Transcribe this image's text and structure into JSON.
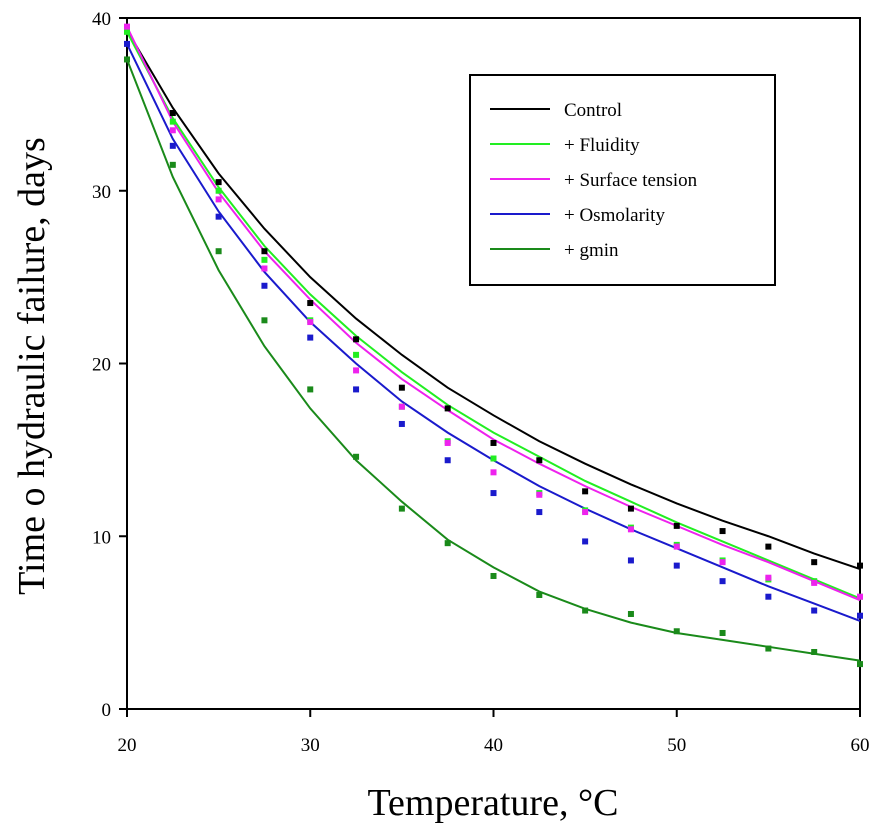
{
  "chart_data": {
    "type": "line",
    "title": "",
    "xlabel": "Temperature, °C",
    "ylabel": "Time o hydraulic failure, days",
    "xlim": [
      20,
      60
    ],
    "ylim": [
      0,
      40
    ],
    "xticks": [
      20,
      30,
      40,
      50,
      60
    ],
    "yticks": [
      0,
      10,
      20,
      30,
      40
    ],
    "grid": false,
    "legend_position": "top-right",
    "x": [
      20,
      22.5,
      25,
      27.5,
      30,
      32.5,
      35,
      37.5,
      40,
      42.5,
      45,
      47.5,
      50,
      52.5,
      55,
      57.5,
      60
    ],
    "series": [
      {
        "name": "Control",
        "color": "#000000",
        "points": [
          39.3,
          34.5,
          30.5,
          26.5,
          23.5,
          21.4,
          18.6,
          17.4,
          15.4,
          14.4,
          12.6,
          11.6,
          10.6,
          10.3,
          9.4,
          8.5,
          8.3
        ],
        "fit": [
          39.3,
          34.8,
          31.0,
          27.8,
          25.0,
          22.6,
          20.5,
          18.6,
          17.0,
          15.5,
          14.2,
          13.0,
          11.9,
          10.9,
          10.0,
          9.0,
          8.1
        ]
      },
      {
        "name": "+ Fluidity",
        "color": "#22ee22",
        "points": [
          39.2,
          34.0,
          30.0,
          26.0,
          22.5,
          20.5,
          17.5,
          15.5,
          14.5,
          12.5,
          11.5,
          10.5,
          9.5,
          8.6,
          7.5,
          7.4,
          6.5
        ],
        "fit": [
          39.2,
          34.2,
          30.2,
          26.8,
          24.0,
          21.6,
          19.5,
          17.6,
          16.0,
          14.6,
          13.2,
          12.0,
          10.8,
          9.7,
          8.6,
          7.5,
          6.4
        ]
      },
      {
        "name": "+ Surface tension",
        "color": "#ee22ee",
        "points": [
          39.5,
          33.5,
          29.5,
          25.5,
          22.4,
          19.6,
          17.5,
          15.4,
          13.7,
          12.4,
          11.4,
          10.4,
          9.4,
          8.5,
          7.6,
          7.3,
          6.5
        ],
        "fit": [
          39.5,
          34.0,
          29.9,
          26.5,
          23.7,
          21.2,
          19.1,
          17.3,
          15.6,
          14.2,
          12.9,
          11.7,
          10.6,
          9.5,
          8.5,
          7.4,
          6.3
        ]
      },
      {
        "name": "+ Osmolarity",
        "color": "#1a1acc",
        "points": [
          38.5,
          32.6,
          28.5,
          24.5,
          21.5,
          18.5,
          16.5,
          14.4,
          12.5,
          11.4,
          9.7,
          8.6,
          8.3,
          7.4,
          6.5,
          5.7,
          5.4
        ],
        "fit": [
          38.5,
          33.0,
          28.8,
          25.3,
          22.4,
          20.0,
          17.8,
          16.0,
          14.4,
          12.9,
          11.6,
          10.4,
          9.3,
          8.2,
          7.1,
          6.1,
          5.1
        ]
      },
      {
        "name": "+ gmin",
        "color": "#1a8a1a",
        "points": [
          37.6,
          31.5,
          26.5,
          22.5,
          18.5,
          14.6,
          11.6,
          9.6,
          7.7,
          6.6,
          5.7,
          5.5,
          4.5,
          4.4,
          3.5,
          3.3,
          2.6
        ],
        "fit": [
          37.6,
          30.8,
          25.4,
          21.0,
          17.4,
          14.4,
          12.0,
          9.8,
          8.2,
          6.8,
          5.8,
          5.0,
          4.4,
          4.0,
          3.6,
          3.2,
          2.8
        ]
      }
    ]
  }
}
